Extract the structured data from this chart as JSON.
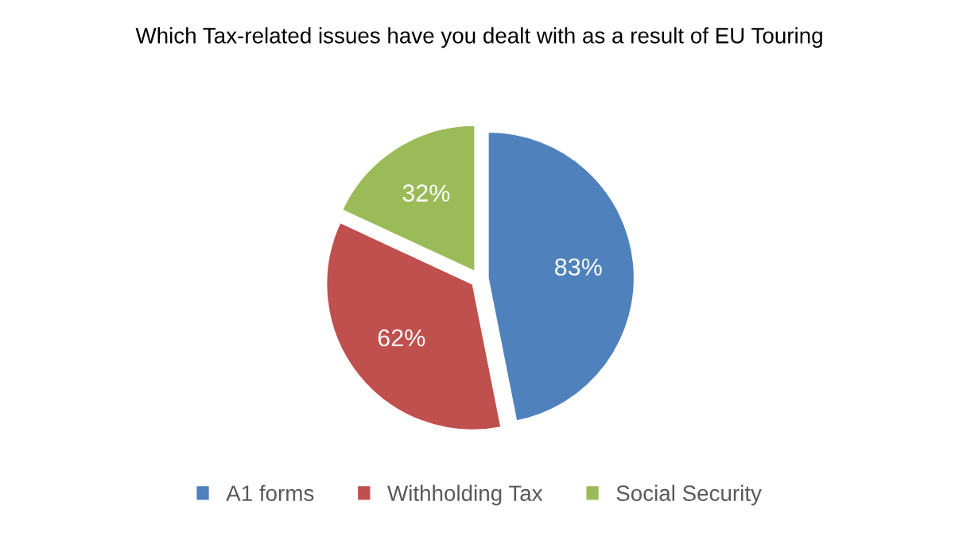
{
  "chart_data": {
    "type": "pie",
    "title": "Which Tax-related issues have you dealt with as a result of EU Touring",
    "categories": [
      "A1 forms",
      "Withholding Tax",
      "Social Security"
    ],
    "values": [
      83,
      62,
      32
    ],
    "colors": [
      "#4f81bd",
      "#c0504d",
      "#9bbb59"
    ],
    "value_labels": [
      "83%",
      "62%",
      "32%"
    ],
    "legend": "bottom"
  }
}
